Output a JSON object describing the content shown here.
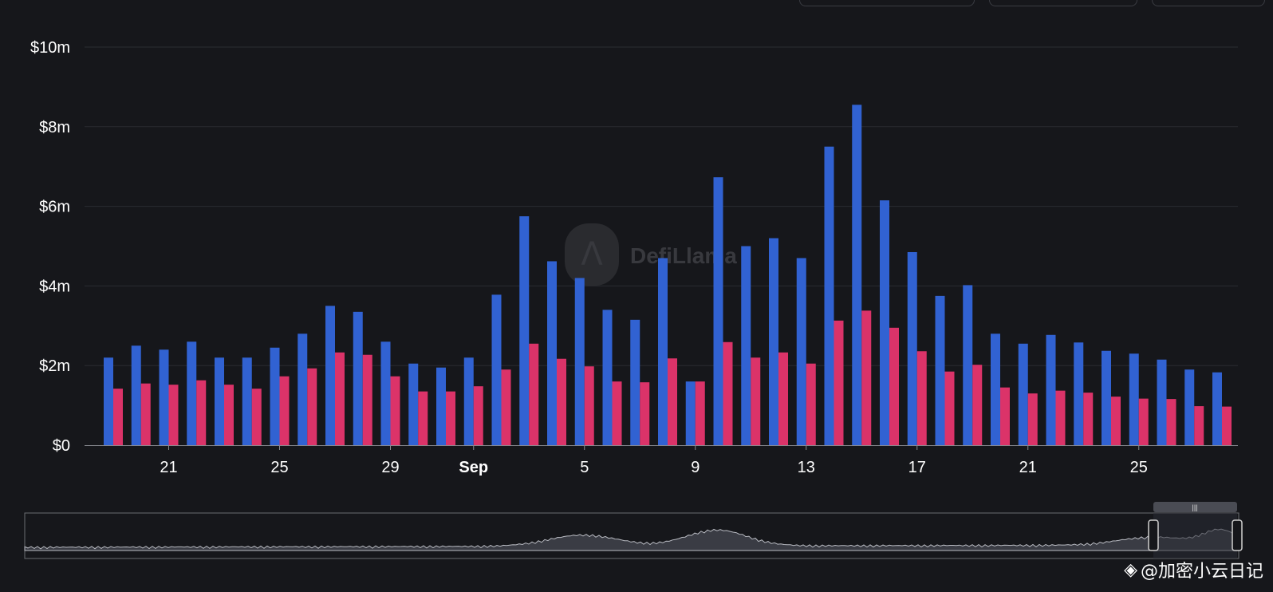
{
  "colors": {
    "background": "#16171b",
    "series_blue": "#3162d2",
    "series_pink": "#db3369",
    "grid": "#2a2c31",
    "text": "#ffffff"
  },
  "watermark": {
    "brand": "DefiLlama",
    "icon": "llama-logo-icon"
  },
  "overlay": {
    "handle": "@加密小云日记",
    "icon": "binance-logo-icon"
  },
  "chart_data": {
    "type": "bar",
    "title": "",
    "xlabel": "",
    "ylabel": "",
    "ylim": [
      0,
      10
    ],
    "y_ticks": [
      "$0",
      "$2m",
      "$4m",
      "$6m",
      "$8m",
      "$10m"
    ],
    "x_tick_labels": [
      {
        "index": 2,
        "label": "21"
      },
      {
        "index": 6,
        "label": "25"
      },
      {
        "index": 10,
        "label": "29"
      },
      {
        "index": 13,
        "label": "Sep"
      },
      {
        "index": 17,
        "label": "5"
      },
      {
        "index": 21,
        "label": "9"
      },
      {
        "index": 25,
        "label": "13"
      },
      {
        "index": 29,
        "label": "17"
      },
      {
        "index": 33,
        "label": "21"
      },
      {
        "index": 37,
        "label": "25"
      }
    ],
    "grid": true,
    "series": [
      {
        "color": "#3162d2",
        "values": [
          2.2,
          2.5,
          2.4,
          2.6,
          2.2,
          2.2,
          2.45,
          2.8,
          3.5,
          3.35,
          2.6,
          2.05,
          1.95,
          2.2,
          3.78,
          5.75,
          4.62,
          4.2,
          3.4,
          3.15,
          4.7,
          1.6,
          6.73,
          5.0,
          5.2,
          4.7,
          7.5,
          8.55,
          6.15,
          4.85,
          3.75,
          4.02,
          2.8,
          2.55,
          2.77,
          2.58,
          2.37,
          2.3,
          2.15,
          1.9,
          1.83
        ]
      },
      {
        "color": "#db3369",
        "values": [
          1.42,
          1.55,
          1.52,
          1.63,
          1.52,
          1.42,
          1.73,
          1.93,
          2.33,
          2.27,
          1.73,
          1.35,
          1.35,
          1.48,
          1.9,
          2.55,
          2.17,
          1.98,
          1.6,
          1.58,
          2.18,
          1.6,
          2.59,
          2.2,
          2.33,
          2.05,
          3.13,
          3.38,
          2.95,
          2.36,
          1.85,
          2.02,
          1.45,
          1.3,
          1.37,
          1.32,
          1.22,
          1.17,
          1.16,
          0.98,
          0.97
        ]
      }
    ]
  }
}
